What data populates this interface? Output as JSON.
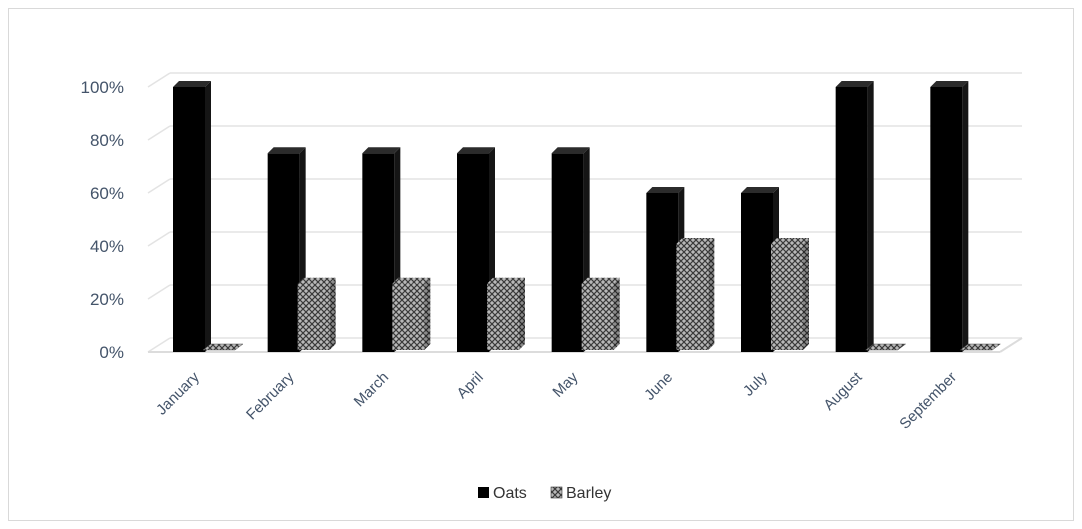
{
  "chart_data": {
    "type": "bar",
    "categories": [
      "January",
      "February",
      "March",
      "April",
      "May",
      "June",
      "July",
      "August",
      "September"
    ],
    "series": [
      {
        "name": "Oats",
        "values": [
          100,
          75,
          75,
          75,
          75,
          60,
          60,
          100,
          100
        ]
      },
      {
        "name": "Barley",
        "values": [
          0,
          25,
          25,
          25,
          25,
          40,
          40,
          0,
          0
        ]
      }
    ],
    "ylim": [
      0,
      100
    ],
    "yticks": [
      0,
      20,
      40,
      60,
      80,
      100
    ],
    "ytick_suffix": "%",
    "grid": true,
    "legend": "bottom",
    "colors": {
      "Oats": "#000000",
      "Barley": "#8c8c8c"
    }
  }
}
